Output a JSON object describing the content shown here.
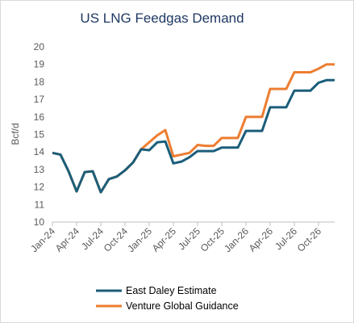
{
  "chart_data": {
    "type": "line",
    "title": "US LNG Feedgas Demand",
    "ylabel": "Bcf/d",
    "xlabel": "",
    "ylim": [
      10,
      20
    ],
    "yticks": [
      10,
      11,
      12,
      13,
      14,
      15,
      16,
      17,
      18,
      19,
      20
    ],
    "grid": false,
    "legend_position": "bottom",
    "x_tick_labels": [
      "Jan-24",
      "Apr-24",
      "Jul-24",
      "Oct-24",
      "Jan-25",
      "Apr-25",
      "Jul-25",
      "Oct-25",
      "Jan-26",
      "Apr-26",
      "Jul-26",
      "Oct-26"
    ],
    "x_tick_indices": [
      0,
      3,
      6,
      9,
      12,
      15,
      18,
      21,
      24,
      27,
      30,
      33
    ],
    "x": [
      "Jan-24",
      "Feb-24",
      "Mar-24",
      "Apr-24",
      "May-24",
      "Jun-24",
      "Jul-24",
      "Aug-24",
      "Sep-24",
      "Oct-24",
      "Nov-24",
      "Dec-24",
      "Jan-25",
      "Feb-25",
      "Mar-25",
      "Apr-25",
      "May-25",
      "Jun-25",
      "Jul-25",
      "Aug-25",
      "Sep-25",
      "Oct-25",
      "Nov-25",
      "Dec-25",
      "Jan-26",
      "Feb-26",
      "Mar-26",
      "Apr-26",
      "May-26",
      "Jun-26",
      "Jul-26",
      "Aug-26",
      "Sep-26",
      "Oct-26",
      "Nov-26",
      "Dec-26"
    ],
    "series": [
      {
        "name": "East Daley Estimate",
        "color": "#1b5e7a",
        "values": [
          13.95,
          13.85,
          12.9,
          11.75,
          12.85,
          12.9,
          11.7,
          12.45,
          12.6,
          12.95,
          13.4,
          14.15,
          14.1,
          14.55,
          14.6,
          13.35,
          13.45,
          13.7,
          14.05,
          14.05,
          14.05,
          14.25,
          14.25,
          14.25,
          15.2,
          15.2,
          15.2,
          16.55,
          16.55,
          16.55,
          17.5,
          17.5,
          17.5,
          17.95,
          18.1,
          18.1
        ]
      },
      {
        "name": "Venture Global Guidance",
        "color": "#ed7d31",
        "values": [
          13.95,
          13.85,
          12.9,
          11.75,
          12.85,
          12.9,
          11.7,
          12.45,
          12.6,
          12.95,
          13.4,
          14.15,
          14.55,
          14.95,
          15.25,
          13.75,
          13.85,
          13.95,
          14.4,
          14.35,
          14.35,
          14.8,
          14.8,
          14.8,
          16.0,
          16.0,
          16.0,
          17.6,
          17.6,
          17.6,
          18.55,
          18.55,
          18.55,
          18.75,
          19.0,
          19.0
        ]
      }
    ]
  }
}
